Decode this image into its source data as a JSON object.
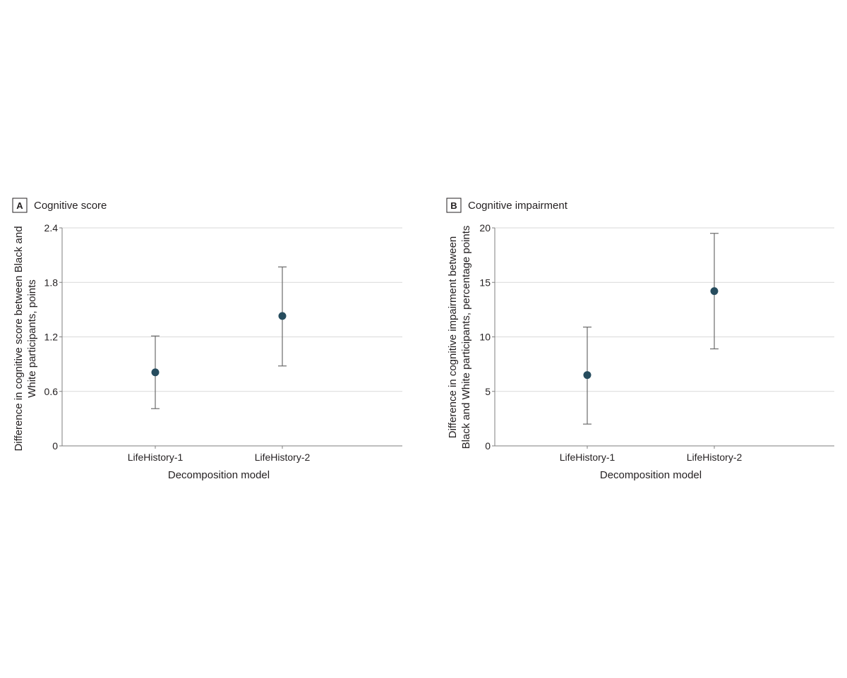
{
  "panels": [
    {
      "letter": "A",
      "title": "Cognitive score",
      "ylabel_lines": [
        "Difference in cognitive score between Black and",
        "White participants, points"
      ],
      "xlabel": "Decomposition model",
      "yticks": [
        "0",
        "0.6",
        "1.2",
        "1.8",
        "2.4"
      ]
    },
    {
      "letter": "B",
      "title": "Cognitive impairment",
      "ylabel_lines": [
        "Difference in cognitive impairment between",
        "Black and White participants, percentage points"
      ],
      "xlabel": "Decomposition model",
      "yticks": [
        "0",
        "5",
        "10",
        "15",
        "20"
      ]
    }
  ],
  "colors": {
    "point": "#264c5e",
    "errorbar": "#6b6b6b",
    "grid": "#d9d9d9"
  },
  "chart_data": [
    {
      "type": "scatter",
      "title": "Cognitive score",
      "categories": [
        "LifeHistory-1",
        "LifeHistory-2"
      ],
      "values": [
        0.81,
        1.43
      ],
      "ci_lower": [
        0.41,
        0.88
      ],
      "ci_upper": [
        1.21,
        1.97
      ],
      "xlabel": "Decomposition model",
      "ylabel": "Difference in cognitive score between Black and White participants, points",
      "ylim": [
        0,
        2.4
      ],
      "yticks": [
        0,
        0.6,
        1.2,
        1.8,
        2.4
      ],
      "grid": "horizontal"
    },
    {
      "type": "scatter",
      "title": "Cognitive impairment",
      "categories": [
        "LifeHistory-1",
        "LifeHistory-2"
      ],
      "values": [
        6.5,
        14.2
      ],
      "ci_lower": [
        2.0,
        8.9
      ],
      "ci_upper": [
        10.9,
        19.5
      ],
      "xlabel": "Decomposition model",
      "ylabel": "Difference in cognitive impairment between Black and White participants, percentage points",
      "ylim": [
        0,
        20
      ],
      "yticks": [
        0,
        5,
        10,
        15,
        20
      ],
      "grid": "horizontal"
    }
  ]
}
